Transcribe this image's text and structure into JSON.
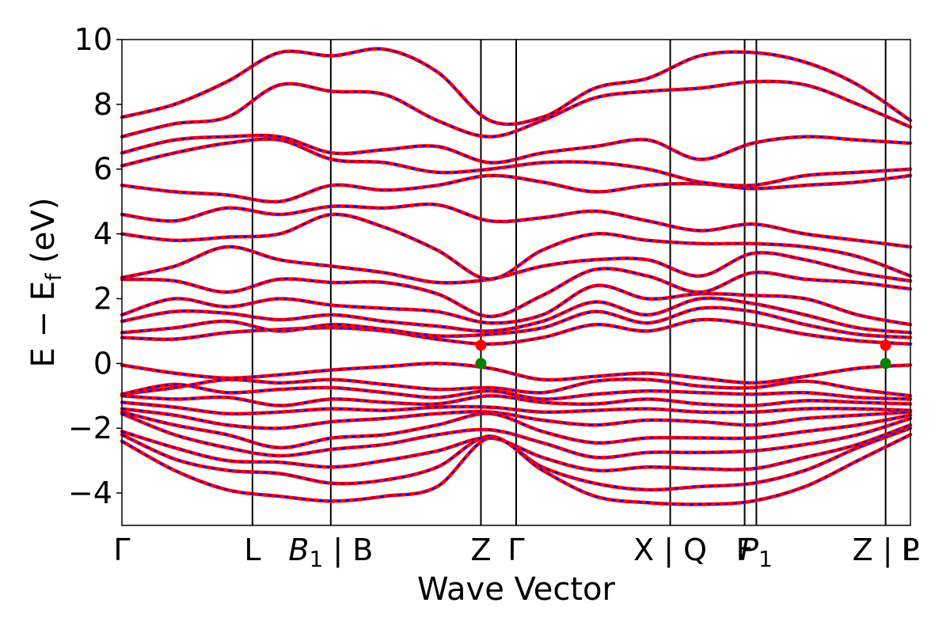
{
  "chart_data": {
    "type": "line",
    "title": "",
    "xlabel": "Wave Vector",
    "ylabel": "E − E",
    "ylabel_sub": "f",
    "ylabel_unit": " (eV)",
    "ylim": [
      -5,
      10
    ],
    "yticks": [
      {
        "value": -4,
        "label": "−4"
      },
      {
        "value": -2,
        "label": "−2"
      },
      {
        "value": 0,
        "label": "0"
      },
      {
        "value": 2,
        "label": "2"
      },
      {
        "value": 4,
        "label": "4"
      },
      {
        "value": 6,
        "label": "6"
      },
      {
        "value": 8,
        "label": "8"
      },
      {
        "value": 10,
        "label": "10"
      }
    ],
    "xlim": [
      0,
      6.04
    ],
    "high_symmetry_points": [
      {
        "x": 0.0,
        "label": "Γ",
        "line": false
      },
      {
        "x": 1.0,
        "label": "L",
        "line": true
      },
      {
        "x": 1.6,
        "label": "B",
        "sub": "1",
        "suffix": " | B",
        "line": true
      },
      {
        "x": 2.75,
        "label": "Z",
        "line": true
      },
      {
        "x": 3.02,
        "label": "Γ",
        "line": true
      },
      {
        "x": 4.2,
        "label": "X | Q",
        "line": true
      },
      {
        "x": 4.77,
        "label": "F",
        "line": true
      },
      {
        "x": 4.86,
        "label": "P",
        "sub": "1",
        "line": true
      },
      {
        "x": 5.85,
        "label": "Z | L",
        "line": true
      },
      {
        "x": 6.04,
        "label": "P",
        "line": false
      }
    ],
    "series_styles": [
      {
        "color": "#ff0000",
        "style": "solid"
      },
      {
        "color": "#0000ff",
        "style": "dashed"
      }
    ],
    "band_edges": [
      {
        "x": 2.75,
        "y": 0.56,
        "color": "#ff0000"
      },
      {
        "x": 2.75,
        "y": 0.0,
        "color": "#008000"
      },
      {
        "x": 5.85,
        "y": 0.56,
        "color": "#ff0000"
      },
      {
        "x": 5.85,
        "y": 0.0,
        "color": "#008000"
      }
    ],
    "valence_bands": [
      [
        -0.05,
        -0.3,
        -0.45,
        -0.35,
        -0.2,
        -0.1,
        0.0,
        -0.15,
        -0.5,
        -0.4,
        -0.3,
        -0.45,
        -0.6,
        -0.4,
        -0.15,
        -0.05
      ],
      [
        -0.95,
        -0.75,
        -0.5,
        -0.6,
        -0.5,
        -0.65,
        -0.8,
        -0.75,
        -0.9,
        -0.55,
        -0.5,
        -0.7,
        -0.75,
        -0.55,
        -0.8,
        -1.0
      ],
      [
        -0.95,
        -0.65,
        -0.9,
        -0.8,
        -0.75,
        -0.9,
        -1.05,
        -0.85,
        -1.1,
        -0.95,
        -0.85,
        -0.9,
        -0.95,
        -0.9,
        -1.05,
        -1.1
      ],
      [
        -1.0,
        -1.1,
        -1.05,
        -1.3,
        -1.1,
        -1.2,
        -1.25,
        -1.0,
        -1.2,
        -1.25,
        -1.1,
        -1.25,
        -1.3,
        -1.15,
        -1.2,
        -1.25
      ],
      [
        -1.2,
        -1.35,
        -1.55,
        -1.5,
        -1.4,
        -1.45,
        -1.35,
        -1.35,
        -1.5,
        -1.45,
        -1.4,
        -1.5,
        -1.5,
        -1.4,
        -1.4,
        -1.45
      ],
      [
        -1.4,
        -1.6,
        -1.9,
        -2.0,
        -1.8,
        -1.7,
        -1.55,
        -1.5,
        -1.75,
        -1.9,
        -1.75,
        -1.8,
        -1.9,
        -1.7,
        -1.6,
        -1.5
      ],
      [
        -1.5,
        -1.9,
        -2.2,
        -2.6,
        -2.3,
        -2.2,
        -1.9,
        -1.55,
        -2.1,
        -2.45,
        -2.3,
        -2.3,
        -2.3,
        -2.1,
        -1.9,
        -1.6
      ],
      [
        -1.55,
        -2.2,
        -2.6,
        -2.85,
        -2.65,
        -2.5,
        -2.2,
        -2.05,
        -2.45,
        -2.9,
        -2.75,
        -2.75,
        -2.7,
        -2.5,
        -2.2,
        -1.7
      ],
      [
        -2.1,
        -2.6,
        -3.0,
        -3.05,
        -3.2,
        -3.0,
        -2.7,
        -2.3,
        -2.9,
        -3.3,
        -3.2,
        -3.25,
        -3.25,
        -2.9,
        -2.5,
        -1.9
      ],
      [
        -2.2,
        -2.95,
        -3.3,
        -3.4,
        -3.7,
        -3.6,
        -3.2,
        -2.25,
        -3.2,
        -3.7,
        -3.9,
        -3.8,
        -3.7,
        -3.3,
        -2.6,
        -2.0
      ],
      [
        -2.4,
        -3.3,
        -3.9,
        -4.1,
        -4.25,
        -4.1,
        -3.8,
        -2.3,
        -3.3,
        -4.1,
        -4.3,
        -4.35,
        -4.25,
        -3.8,
        -3.0,
        -2.2
      ]
    ],
    "conduction_bands": [
      [
        0.8,
        0.75,
        0.95,
        1.05,
        1.1,
        1.0,
        0.75,
        0.6,
        0.8,
        1.2,
        1.0,
        1.35,
        1.2,
        0.9,
        0.7,
        0.6
      ],
      [
        0.95,
        1.1,
        1.3,
        1.0,
        1.2,
        1.05,
        0.85,
        0.9,
        1.1,
        1.6,
        1.25,
        1.7,
        1.6,
        1.2,
        0.9,
        0.8
      ],
      [
        1.3,
        1.6,
        1.55,
        1.35,
        1.5,
        1.3,
        1.15,
        1.0,
        1.3,
        1.9,
        1.5,
        2.0,
        1.85,
        1.5,
        1.1,
        0.95
      ],
      [
        1.5,
        2.0,
        1.75,
        2.0,
        1.8,
        1.7,
        1.6,
        1.25,
        1.5,
        2.4,
        2.0,
        2.15,
        2.1,
        2.0,
        1.5,
        1.2
      ],
      [
        2.6,
        2.55,
        2.2,
        2.6,
        2.5,
        2.5,
        2.15,
        1.45,
        2.1,
        2.9,
        2.7,
        2.2,
        2.8,
        2.6,
        2.5,
        2.3
      ],
      [
        2.65,
        3.0,
        3.6,
        3.2,
        3.0,
        2.8,
        2.5,
        2.6,
        3.0,
        3.2,
        3.2,
        2.7,
        3.4,
        3.2,
        2.8,
        2.55
      ],
      [
        4.0,
        3.8,
        3.9,
        4.0,
        4.6,
        4.2,
        3.5,
        2.6,
        3.5,
        4.0,
        3.8,
        3.7,
        3.7,
        3.6,
        3.3,
        2.7
      ],
      [
        4.6,
        4.4,
        4.8,
        4.6,
        4.85,
        4.8,
        4.9,
        4.4,
        4.5,
        4.7,
        4.4,
        4.1,
        4.3,
        4.0,
        3.8,
        3.6
      ],
      [
        5.5,
        5.3,
        5.2,
        5.0,
        5.5,
        5.35,
        5.5,
        5.8,
        5.6,
        5.3,
        5.5,
        5.55,
        5.4,
        5.5,
        5.6,
        5.8
      ],
      [
        6.1,
        6.5,
        6.8,
        6.9,
        6.3,
        6.2,
        5.9,
        6.0,
        6.2,
        6.2,
        6.0,
        5.6,
        5.5,
        5.8,
        5.9,
        6.0
      ],
      [
        6.5,
        6.9,
        7.0,
        7.0,
        6.5,
        6.6,
        6.7,
        6.2,
        6.5,
        6.7,
        6.9,
        6.3,
        6.8,
        7.0,
        6.9,
        6.8
      ],
      [
        7.0,
        7.4,
        7.6,
        8.6,
        8.4,
        8.3,
        7.5,
        7.0,
        7.5,
        8.2,
        8.4,
        8.5,
        8.7,
        8.6,
        8.0,
        7.3
      ],
      [
        7.6,
        8.0,
        8.7,
        9.6,
        9.5,
        9.7,
        9.0,
        7.5,
        7.6,
        8.5,
        8.8,
        9.5,
        9.6,
        9.3,
        8.6,
        7.5
      ]
    ]
  }
}
